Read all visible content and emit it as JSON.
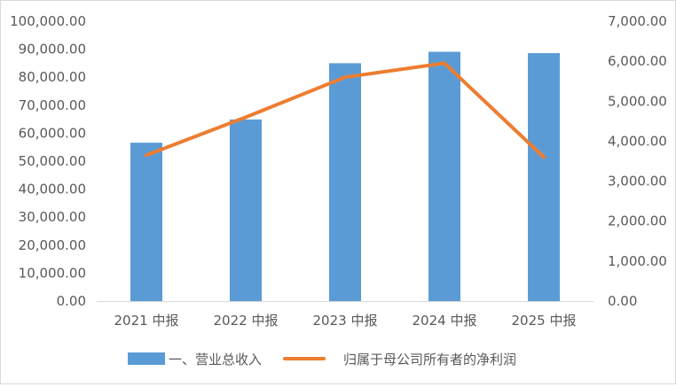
{
  "chart_data": {
    "type": "bar",
    "categories": [
      "2021 中报",
      "2022 中报",
      "2023 中报",
      "2024 中报",
      "2025 中报"
    ],
    "series": [
      {
        "name": "一、营业总收入",
        "type": "bar",
        "axis": "left",
        "values": [
          56600,
          64900,
          85000,
          89100,
          88600
        ]
      },
      {
        "name": "归属于母公司所有者的净利润",
        "type": "line",
        "axis": "right",
        "values": [
          3650,
          4600,
          5600,
          5950,
          3600
        ]
      }
    ],
    "y_left": {
      "ylim": [
        0,
        100000
      ],
      "ticks": [
        "0.00",
        "10,000.00",
        "20,000.00",
        "30,000.00",
        "40,000.00",
        "50,000.00",
        "60,000.00",
        "70,000.00",
        "80,000.00",
        "90,000.00",
        "100,000.00"
      ]
    },
    "y_right": {
      "ylim": [
        0,
        7000
      ],
      "ticks": [
        "0.00",
        "1,000.00",
        "2,000.00",
        "3,000.00",
        "4,000.00",
        "5,000.00",
        "6,000.00",
        "7,000.00"
      ]
    },
    "grid": false,
    "legend_position": "bottom",
    "colors": {
      "bar": "#5b9bd5",
      "line": "#ed7d31",
      "axis": "#d9d9d9",
      "text": "#595959"
    }
  }
}
